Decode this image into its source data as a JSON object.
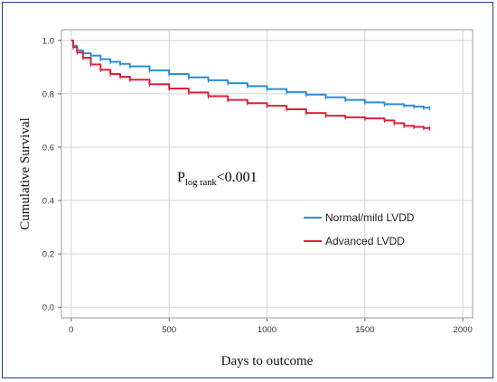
{
  "chart_data": {
    "type": "line",
    "step": true,
    "xlabel": "Days to outcome",
    "ylabel": "Cumulative Survival",
    "xlim": [
      -50,
      2050
    ],
    "ylim": [
      -0.04,
      1.04
    ],
    "xticks": [
      0,
      500,
      1000,
      1500,
      2000
    ],
    "yticks": [
      0.0,
      0.2,
      0.4,
      0.6,
      0.8,
      1.0
    ],
    "ytick_labels": [
      "0.0",
      "0.2",
      "0.4",
      "0.6",
      "0.8",
      "1.0"
    ],
    "grid": true,
    "legend_position": "center-right",
    "annotation": {
      "main": "P",
      "sub": "log rank",
      "rest": "<0.001"
    },
    "series": [
      {
        "name": "Normal/mild LVDD",
        "color": "#2a8ed8",
        "x": [
          0,
          10,
          30,
          60,
          100,
          150,
          200,
          250,
          300,
          400,
          500,
          600,
          700,
          800,
          900,
          1000,
          1100,
          1200,
          1300,
          1400,
          1500,
          1600,
          1700,
          1750,
          1800,
          1830
        ],
        "y": [
          1.0,
          0.98,
          0.963,
          0.952,
          0.943,
          0.93,
          0.92,
          0.912,
          0.903,
          0.888,
          0.874,
          0.862,
          0.851,
          0.84,
          0.829,
          0.818,
          0.807,
          0.797,
          0.787,
          0.777,
          0.768,
          0.761,
          0.756,
          0.752,
          0.748,
          0.746
        ]
      },
      {
        "name": "Advanced LVDD",
        "color": "#e0203a",
        "x": [
          0,
          10,
          30,
          60,
          100,
          150,
          200,
          250,
          300,
          400,
          500,
          600,
          700,
          800,
          900,
          1000,
          1100,
          1200,
          1300,
          1400,
          1500,
          1600,
          1650,
          1700,
          1750,
          1800,
          1830
        ],
        "y": [
          1.0,
          0.975,
          0.955,
          0.935,
          0.91,
          0.89,
          0.874,
          0.864,
          0.853,
          0.836,
          0.82,
          0.805,
          0.791,
          0.777,
          0.765,
          0.755,
          0.742,
          0.728,
          0.718,
          0.712,
          0.708,
          0.7,
          0.69,
          0.68,
          0.676,
          0.672,
          0.67
        ]
      }
    ]
  }
}
